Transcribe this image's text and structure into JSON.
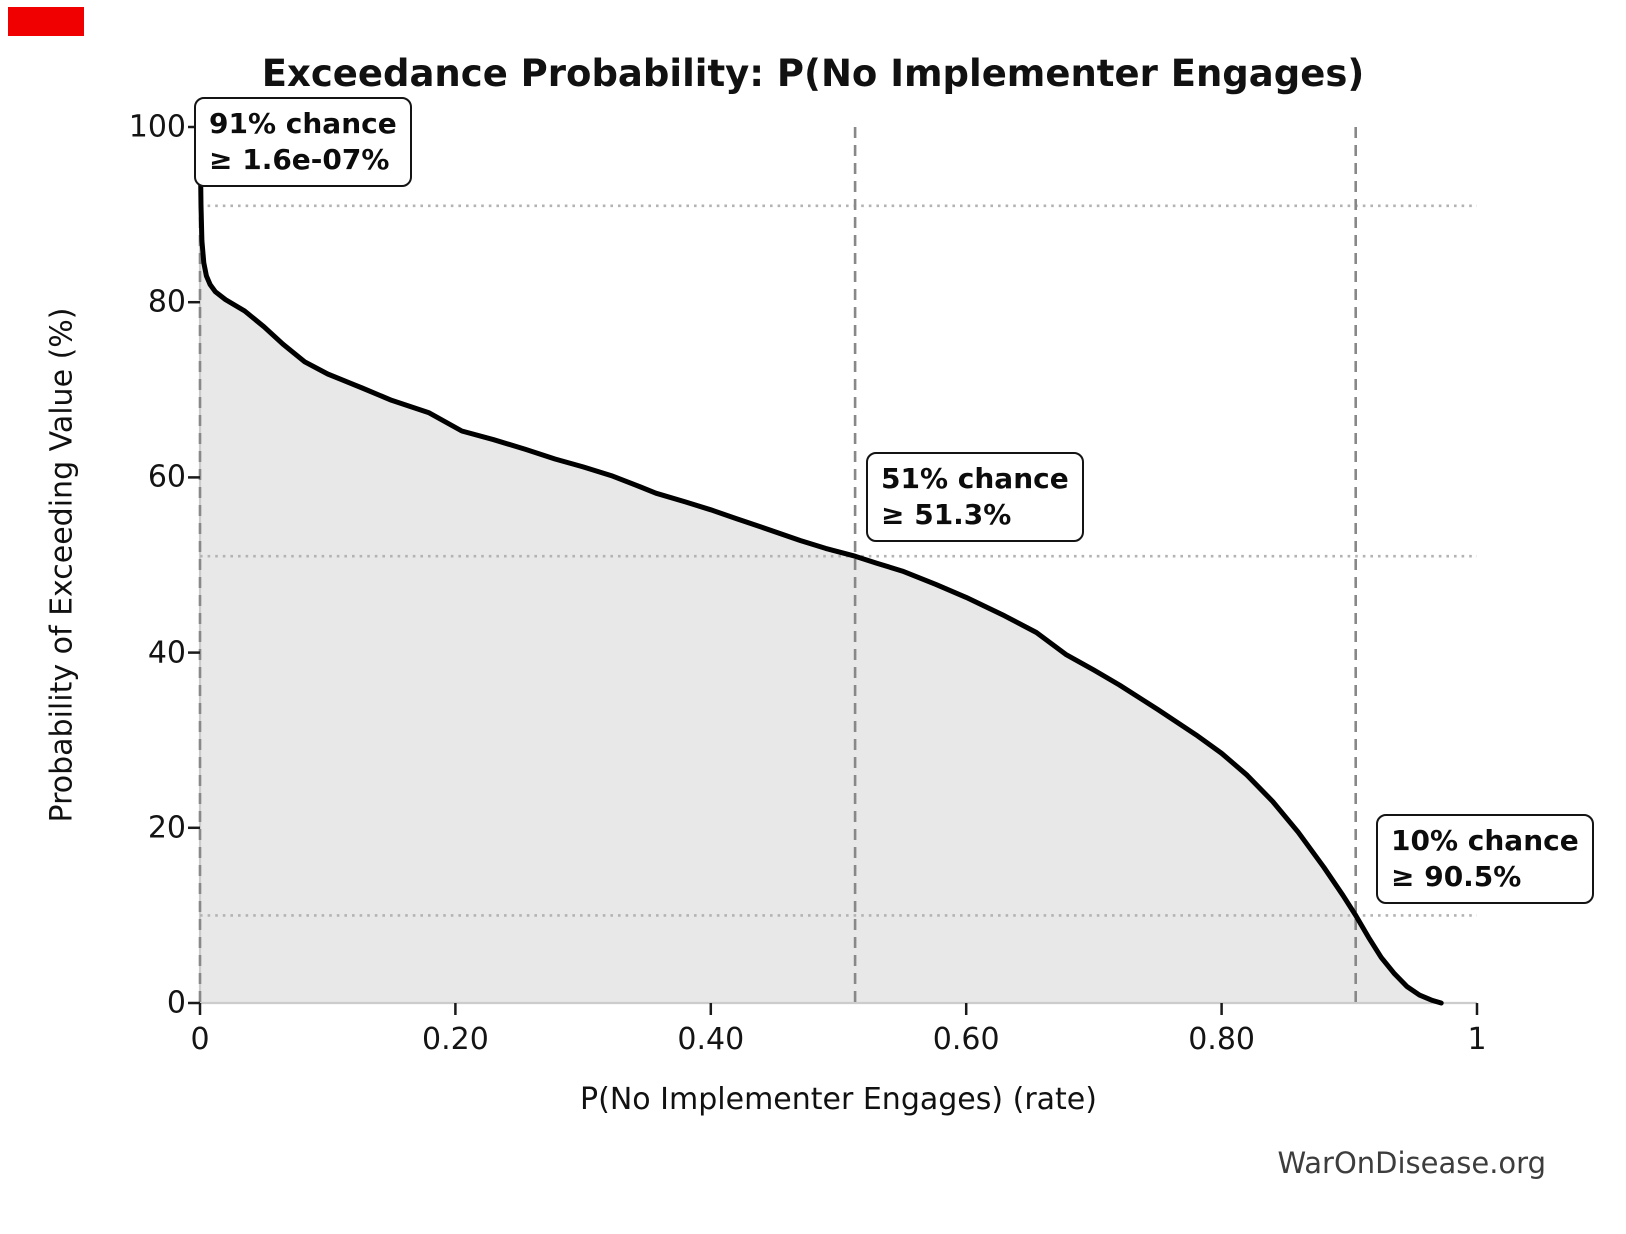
{
  "figure": {
    "background": "#ffffff",
    "watermark": "WarOnDisease.org",
    "overlay_marker_color": "#f00000"
  },
  "chart_data": {
    "type": "line",
    "title": "Exceedance Probability: P(No Implementer Engages)",
    "xlabel": "P(No Implementer Engages) (rate)",
    "ylabel": "Probability of Exceeding Value (%)",
    "xlim": [
      0,
      1
    ],
    "ylim": [
      0,
      100
    ],
    "grid": false,
    "legend": false,
    "x_ticks": {
      "values": [
        0,
        0.2,
        0.4,
        0.6,
        0.8,
        1
      ],
      "labels": [
        "0",
        "0.20",
        "0.40",
        "0.60",
        "0.80",
        "1"
      ]
    },
    "y_ticks": {
      "values": [
        0,
        20,
        40,
        60,
        80,
        100
      ],
      "labels": [
        "0",
        "20",
        "40",
        "60",
        "80",
        "100"
      ]
    },
    "line_color": "#000000",
    "line_width": 5,
    "fill_color": "#e8e8e8",
    "spine_color": "#cccccc",
    "tick_color": "#1a1a1a",
    "reference_lines": {
      "horizontal_dotted_y": [
        91,
        51,
        10
      ],
      "vertical_dashed_x": [
        1.6e-09,
        0.513,
        0.905
      ],
      "dashed_color": "#888888",
      "dotted_color": "#b3b3b3"
    },
    "annotations": [
      {
        "line1": "91% chance",
        "line2": "≥ 1.6e-07%"
      },
      {
        "line1": "51% chance",
        "line2": "≥ 51.3%"
      },
      {
        "line1": "10% chance",
        "line2": "≥ 90.5%"
      }
    ],
    "series": [
      {
        "name": "Exceedance probability curve",
        "x": [
          0.0,
          0.0008,
          0.0015,
          0.003,
          0.005,
          0.008,
          0.012,
          0.02,
          0.035,
          0.05,
          0.065,
          0.082,
          0.1,
          0.127,
          0.15,
          0.179,
          0.205,
          0.23,
          0.255,
          0.278,
          0.3,
          0.322,
          0.345,
          0.357,
          0.38,
          0.4,
          0.42,
          0.44,
          0.47,
          0.49,
          0.513,
          0.53,
          0.55,
          0.576,
          0.6,
          0.63,
          0.655,
          0.678,
          0.7,
          0.72,
          0.75,
          0.78,
          0.8,
          0.82,
          0.84,
          0.86,
          0.88,
          0.895,
          0.905,
          0.915,
          0.925,
          0.935,
          0.945,
          0.955,
          0.965,
          0.972
        ],
        "y": [
          100,
          91,
          87,
          84.5,
          83,
          82,
          81.2,
          80.3,
          79,
          77.2,
          75.2,
          73.2,
          71.8,
          70.2,
          68.8,
          67.4,
          65.3,
          64.3,
          63.2,
          62.1,
          61.2,
          60.2,
          58.9,
          58.2,
          57.2,
          56.3,
          55.3,
          54.3,
          52.8,
          51.9,
          51.0,
          50.2,
          49.3,
          47.8,
          46.3,
          44.2,
          42.3,
          39.8,
          38.0,
          36.3,
          33.5,
          30.6,
          28.5,
          26.0,
          23.0,
          19.5,
          15.5,
          12.3,
          10.0,
          7.5,
          5.2,
          3.4,
          1.9,
          0.9,
          0.3,
          0.0
        ]
      }
    ]
  }
}
